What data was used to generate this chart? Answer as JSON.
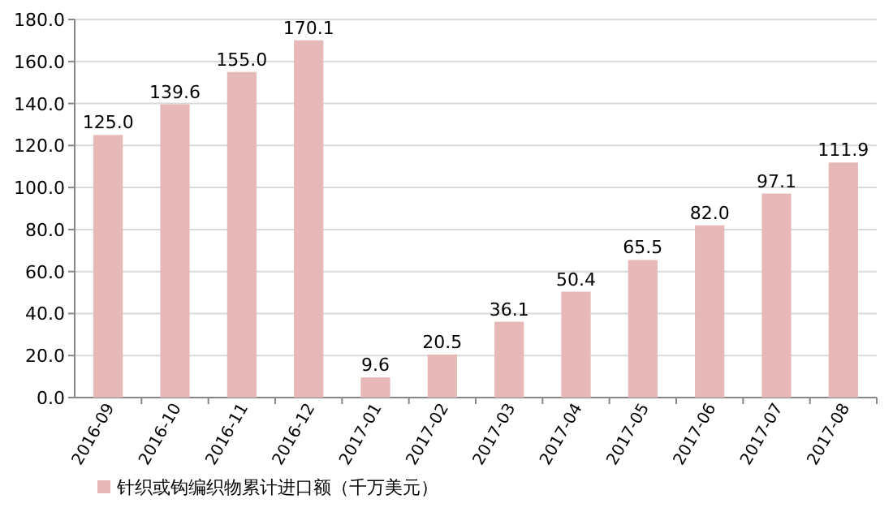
{
  "chart_data": {
    "type": "bar",
    "categories": [
      "2016-09",
      "2016-10",
      "2016-11",
      "2016-12",
      "2017-01",
      "2017-02",
      "2017-03",
      "2017-04",
      "2017-05",
      "2017-06",
      "2017-07",
      "2017-08"
    ],
    "series": [
      {
        "name": "针织或钩编织物累计进口额（千万美元）",
        "color": "#e6b9b8",
        "values": [
          125.0,
          139.6,
          155.0,
          170.1,
          9.6,
          20.5,
          36.1,
          50.4,
          65.5,
          82.0,
          97.1,
          111.9
        ],
        "value_labels": [
          "125.0",
          "139.6",
          "155.0",
          "170.1",
          "9.6",
          "20.5",
          "36.1",
          "50.4",
          "65.5",
          "82.0",
          "97.1",
          "111.9"
        ]
      }
    ],
    "ylim": [
      0,
      180
    ],
    "yticks": [
      {
        "value": 0,
        "label": "0.0"
      },
      {
        "value": 20,
        "label": "20.0"
      },
      {
        "value": 40,
        "label": "40.0"
      },
      {
        "value": 60,
        "label": "60.0"
      },
      {
        "value": 80,
        "label": "80.0"
      },
      {
        "value": 100,
        "label": "100.0"
      },
      {
        "value": 120,
        "label": "120.0"
      },
      {
        "value": 140,
        "label": "140.0"
      },
      {
        "value": 160,
        "label": "160.0"
      },
      {
        "value": 180,
        "label": "180.0"
      }
    ],
    "grid": "y",
    "legend": "bottom"
  }
}
